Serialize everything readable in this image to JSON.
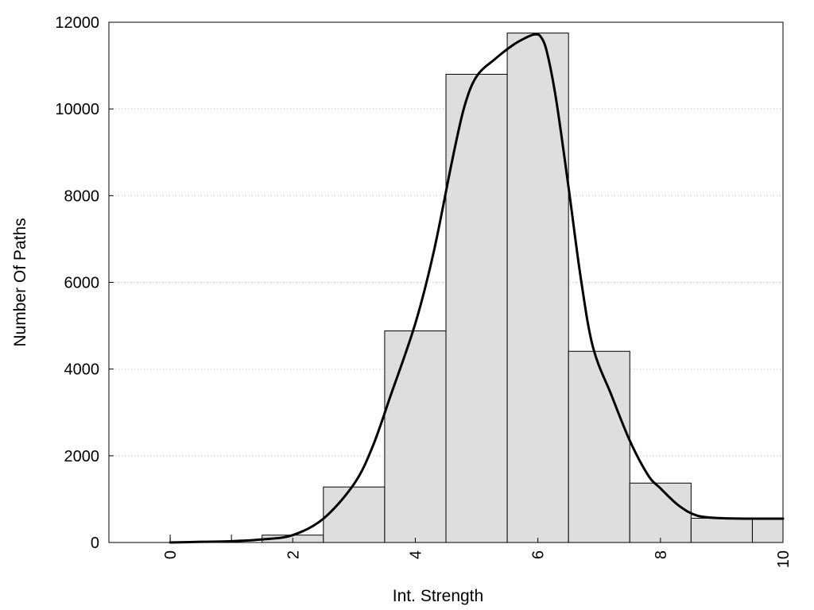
{
  "chart_data": {
    "type": "bar",
    "xlabel": "Int. Strength",
    "ylabel": "Number Of Paths",
    "xlim": [
      -1,
      10
    ],
    "ylim": [
      0,
      12000
    ],
    "x_ticks": [
      0,
      2,
      4,
      6,
      8,
      10
    ],
    "y_ticks": [
      0,
      2000,
      4000,
      6000,
      8000,
      10000,
      12000
    ],
    "grid": "horizontal dotted",
    "bar_color": "#dedede",
    "bars": {
      "x": [
        0,
        1,
        2,
        3,
        4,
        5,
        6,
        7,
        8,
        9,
        10
      ],
      "values": [
        0,
        0,
        170,
        1280,
        4880,
        10800,
        11750,
        4410,
        1370,
        560,
        560
      ]
    },
    "curve": {
      "x": [
        0,
        0.5,
        1,
        1.5,
        2,
        2.5,
        3,
        3.3,
        3.6,
        4,
        4.3,
        4.6,
        4.8,
        5,
        5.3,
        5.6,
        5.8,
        5.95,
        6.05,
        6.15,
        6.3,
        6.5,
        6.7,
        6.9,
        7.2,
        7.5,
        7.8,
        8,
        8.3,
        8.6,
        9,
        9.5,
        10
      ],
      "y": [
        0,
        15,
        30,
        70,
        170,
        550,
        1350,
        2200,
        3400,
        5050,
        6700,
        8800,
        10050,
        10750,
        11150,
        11480,
        11640,
        11720,
        11660,
        11300,
        10200,
        8200,
        6100,
        4500,
        3400,
        2350,
        1550,
        1250,
        850,
        620,
        560,
        550,
        550
      ]
    }
  }
}
